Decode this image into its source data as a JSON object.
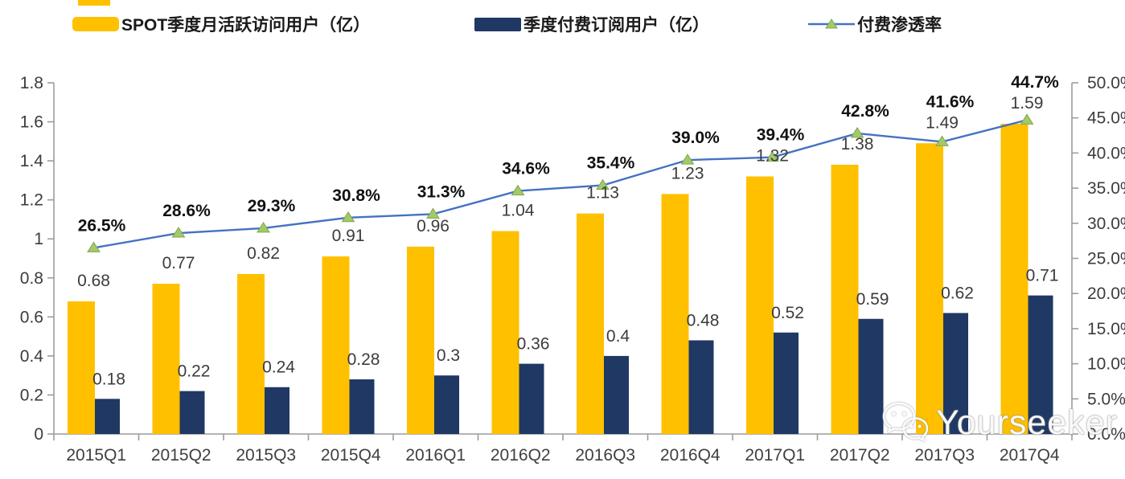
{
  "legend": {
    "items": [
      {
        "label": "SPOT季度月活跃访问用户（亿）"
      },
      {
        "label": "季度付费订阅用户（亿）"
      },
      {
        "label": "付费渗透率"
      }
    ]
  },
  "chart_data": {
    "type": "combo",
    "categories": [
      "2015Q1",
      "2015Q2",
      "2015Q3",
      "2015Q4",
      "2016Q1",
      "2016Q2",
      "2016Q3",
      "2016Q4",
      "2017Q1",
      "2017Q2",
      "2017Q3",
      "2017Q4"
    ],
    "series": [
      {
        "name": "SPOT季度月活跃访问用户（亿）",
        "type": "bar",
        "axis": "left",
        "color": "#FFC000",
        "values": [
          0.68,
          0.77,
          0.82,
          0.91,
          0.96,
          1.04,
          1.13,
          1.23,
          1.32,
          1.38,
          1.49,
          1.59
        ],
        "labels": [
          "0.68",
          "0.77",
          "0.82",
          "0.91",
          "0.96",
          "1.04",
          "1.13",
          "1.23",
          "1.32",
          "1.38",
          "1.49",
          "1.59"
        ]
      },
      {
        "name": "季度付费订阅用户（亿）",
        "type": "bar",
        "axis": "left",
        "color": "#1F3864",
        "values": [
          0.18,
          0.22,
          0.24,
          0.28,
          0.3,
          0.36,
          0.4,
          0.48,
          0.52,
          0.59,
          0.62,
          0.71
        ],
        "labels": [
          "0.18",
          "0.22",
          "0.24",
          "0.28",
          "0.3",
          "0.36",
          "0.4",
          "0.48",
          "0.52",
          "0.59",
          "0.62",
          "0.71"
        ]
      },
      {
        "name": "付费渗透率",
        "type": "line",
        "axis": "right",
        "color": "#4472C4",
        "marker": "triangle-up",
        "marker_color": "#A3C96A",
        "marker_edge_color": "#7FA84E",
        "values": [
          26.5,
          28.6,
          29.3,
          30.8,
          31.3,
          34.6,
          35.4,
          39.0,
          39.4,
          42.8,
          41.6,
          44.7
        ],
        "labels": [
          "26.5%",
          "28.6%",
          "29.3%",
          "30.8%",
          "31.3%",
          "34.6%",
          "35.4%",
          "39.0%",
          "39.4%",
          "42.8%",
          "41.6%",
          "44.7%"
        ]
      }
    ],
    "left_axis": {
      "min": 0,
      "max": 1.8,
      "step": 0.2,
      "tick_labels": [
        "0",
        "0.2",
        "0.4",
        "0.6",
        "0.8",
        "1",
        "1.2",
        "1.4",
        "1.6",
        "1.8"
      ]
    },
    "right_axis": {
      "min": 0,
      "max": 50,
      "step": 5,
      "tick_labels": [
        "0.0%",
        "5.0%",
        "10.0%",
        "15.0%",
        "20.0%",
        "25.0%",
        "30.0%",
        "35.0%",
        "40.0%",
        "45.0%",
        "50.0%"
      ]
    },
    "grid": false,
    "legend_position": "top"
  },
  "watermark": {
    "text": "Yourseeker",
    "icon": "wechat-chat-bubbles-icon"
  }
}
